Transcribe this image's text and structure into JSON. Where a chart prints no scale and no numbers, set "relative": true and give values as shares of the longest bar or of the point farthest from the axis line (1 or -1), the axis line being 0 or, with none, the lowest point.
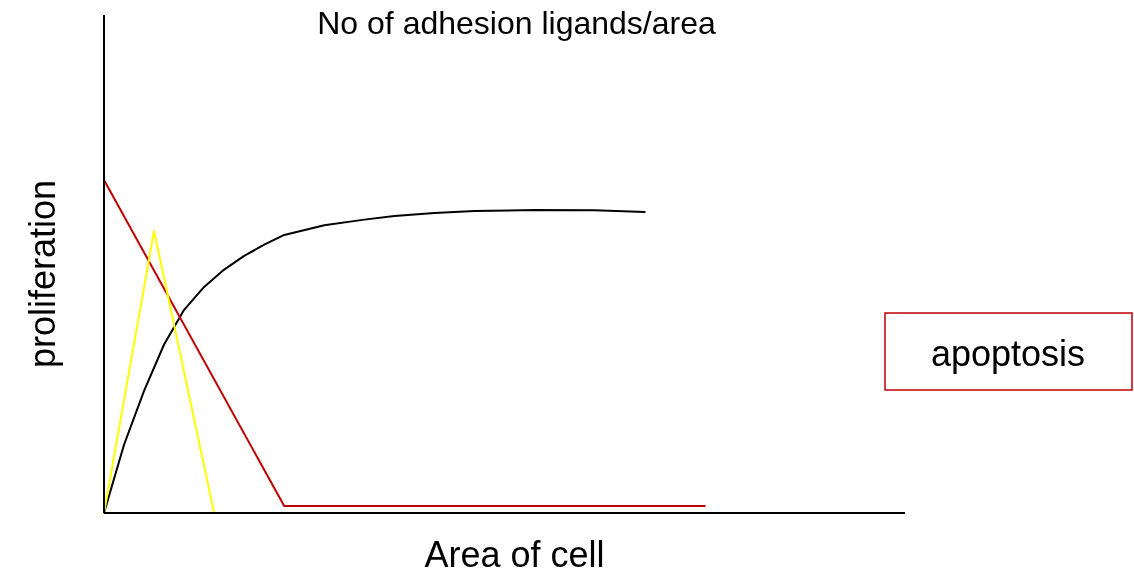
{
  "chart_data": {
    "type": "line",
    "title": "No of adhesion ligands/area",
    "xlabel": "Area of cell",
    "ylabel": "proliferation",
    "relative": true,
    "annotations": [
      "apoptosis"
    ],
    "categories": [
      null,
      null,
      null,
      null,
      null,
      null,
      null,
      null,
      null,
      null,
      null,
      null,
      null,
      null,
      null,
      null,
      null,
      null,
      null,
      null,
      null,
      null,
      null,
      null,
      null,
      null,
      null,
      null,
      null,
      null,
      null,
      null,
      null,
      null,
      null,
      null,
      null,
      null,
      null,
      null,
      null,
      null,
      null,
      null,
      null,
      null,
      null,
      null,
      null,
      null,
      null,
      null,
      null,
      null,
      null,
      null,
      null,
      null,
      null,
      null,
      null,
      null,
      null,
      null,
      null,
      null,
      null,
      null,
      null,
      null,
      null,
      null,
      null,
      null,
      null,
      null,
      null,
      null,
      null,
      null,
      null
    ],
    "series": [
      {
        "color": "#000000",
        "values": [
          0,
          null,
          0.205,
          null,
          0.367,
          null,
          0.506,
          null,
          0.61,
          null,
          0.679,
          null,
          0.731,
          null,
          0.772,
          null,
          0.806,
          null,
          0.835,
          null,
          null,
          null,
          0.864,
          null,
          null,
          null,
          0.881,
          null,
          null,
          0.892,
          null,
          null,
          null,
          0.901,
          null,
          null,
          null,
          0.907,
          null,
          null,
          null,
          null,
          null,
          0.91,
          null,
          null,
          null,
          null,
          null,
          0.909,
          null,
          null,
          null,
          null,
          0.904,
          null,
          null,
          null,
          null,
          null,
          null,
          null,
          null,
          null,
          null,
          null,
          null,
          null,
          null,
          null,
          null,
          null,
          null,
          null,
          null,
          null,
          null,
          null,
          null,
          null,
          null
        ]
      },
      {
        "color": "#c00000",
        "values": [
          1,
          null,
          null,
          null,
          null,
          null,
          null,
          null,
          null,
          null,
          null,
          null,
          null,
          null,
          null,
          null,
          null,
          null,
          0.021,
          null,
          null,
          null,
          null,
          null,
          null,
          null,
          null,
          null,
          null,
          null,
          null,
          null,
          null,
          null,
          null,
          null,
          null,
          null,
          null,
          null,
          null,
          null,
          null,
          null,
          null,
          null,
          null,
          null,
          null,
          null,
          null,
          null,
          null,
          null,
          null,
          null,
          null,
          null,
          null,
          null,
          0.021,
          null,
          null,
          null,
          null,
          null,
          null,
          null,
          null,
          null,
          null,
          null,
          null,
          null,
          null,
          null,
          null,
          null,
          null,
          null,
          null
        ]
      },
      {
        "color": "#ffff00",
        "values": [
          0,
          null,
          null,
          null,
          null,
          0.847,
          null,
          null,
          null,
          null,
          null,
          0,
          null,
          null,
          null,
          null,
          null,
          null,
          null,
          null,
          null,
          null,
          null,
          null,
          null,
          null,
          null,
          null,
          null,
          null,
          null,
          null,
          null,
          null,
          null,
          null,
          null,
          null,
          null,
          null,
          null,
          null,
          null,
          null,
          null,
          null,
          null,
          null,
          null,
          null,
          null,
          null,
          null,
          null,
          null,
          null,
          null,
          null,
          null,
          null,
          null,
          null,
          null,
          null,
          null,
          null,
          null,
          null,
          null,
          null,
          null,
          null,
          null,
          null,
          null,
          null,
          null,
          null,
          null,
          null,
          null
        ]
      }
    ]
  }
}
